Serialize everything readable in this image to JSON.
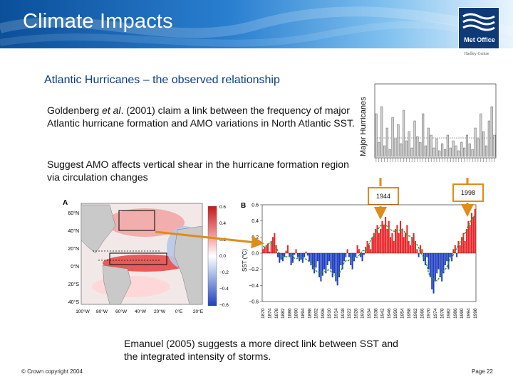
{
  "header": {
    "title": "Climate Impacts",
    "logo_text": "Met Office",
    "org_text": "Hadley Centre"
  },
  "slide": {
    "subtitle": "Atlantic Hurricanes – the observed relationship",
    "paragraph1_pre": "Goldenberg ",
    "paragraph1_italic": "et al",
    "paragraph1_post": ". (2001) claim a link between the frequency of major Atlantic hurricane formation and AMO variations in North Atlantic SST.",
    "paragraph2": "Suggest AMO affects vertical shear in the hurricane formation region via circulation changes",
    "caption": "Emanuel (2005) suggests a more direct link between SST and the integrated intensity of storms.",
    "copyright": "© Crown copyright 2004",
    "page": "Page 22"
  },
  "colors": {
    "header_blue": "#0b4f9a",
    "accent_orange": "#e08b1a",
    "warm": "#e8262a",
    "cool": "#1f3fbf",
    "lowpass": "#2f9a2f"
  },
  "hurricane_chart": {
    "ylabel": "Major Hurricanes",
    "marker_1": "1944",
    "marker_2": "1998"
  },
  "map": {
    "panel_label": "A",
    "lat_labels": [
      "60°N",
      "40°N",
      "20°N",
      "0°N",
      "20°S",
      "40°S"
    ],
    "lon_labels": [
      "100°W",
      "80°W",
      "60°W",
      "40°W",
      "20°W",
      "0°E",
      "20°E"
    ],
    "colorbar_ticks": [
      "0.6",
      "0.4",
      "0.2",
      "0.0",
      "−0.2",
      "−0.4",
      "−0.6"
    ]
  },
  "chart_data": {
    "type": "bar",
    "panel_label": "B",
    "ylabel": "SST (°C)",
    "ylim": [
      -0.6,
      0.6
    ],
    "y_ticks": [
      "0.6",
      "0.4",
      "0.2",
      "0.0",
      "−0.2",
      "−0.4",
      "−0.6"
    ],
    "x_ticks": [
      "1870",
      "1874",
      "1878",
      "1882",
      "1886",
      "1890",
      "1894",
      "1898",
      "1902",
      "1906",
      "1910",
      "1914",
      "1918",
      "1922",
      "1926",
      "1930",
      "1934",
      "1938",
      "1942",
      "1946",
      "1950",
      "1954",
      "1958",
      "1962",
      "1966",
      "1970",
      "1974",
      "1978",
      "1982",
      "1986",
      "1990",
      "1994",
      "1998"
    ],
    "years_start": 1870,
    "values": [
      0.05,
      0.08,
      0.1,
      0.12,
      0.02,
      0.15,
      0.2,
      0.25,
      0.1,
      -0.05,
      -0.12,
      -0.08,
      -0.1,
      -0.05,
      0.03,
      0.1,
      -0.05,
      -0.15,
      -0.12,
      -0.02,
      0.05,
      -0.05,
      -0.1,
      -0.08,
      -0.12,
      -0.05,
      0.02,
      -0.03,
      -0.1,
      -0.15,
      -0.2,
      -0.25,
      -0.18,
      -0.1,
      -0.3,
      -0.35,
      -0.28,
      -0.2,
      -0.25,
      -0.15,
      -0.1,
      -0.2,
      -0.3,
      -0.25,
      -0.35,
      -0.4,
      -0.3,
      -0.15,
      -0.2,
      -0.1,
      -0.05,
      0.05,
      -0.05,
      -0.15,
      -0.2,
      -0.1,
      -0.05,
      0.1,
      0.05,
      -0.05,
      -0.1,
      -0.02,
      0.08,
      0.15,
      0.1,
      0.05,
      0.2,
      0.25,
      0.3,
      0.35,
      0.25,
      0.3,
      0.4,
      0.35,
      0.45,
      0.3,
      0.4,
      0.2,
      0.25,
      0.15,
      0.3,
      0.35,
      0.25,
      0.4,
      0.3,
      0.2,
      0.25,
      0.35,
      0.15,
      0.1,
      0.2,
      0.25,
      0.15,
      0.05,
      -0.05,
      0.1,
      0.05,
      -0.1,
      -0.15,
      -0.05,
      -0.2,
      -0.3,
      -0.45,
      -0.5,
      -0.35,
      -0.25,
      -0.2,
      -0.3,
      -0.35,
      -0.25,
      -0.15,
      -0.1,
      -0.2,
      -0.05,
      -0.1,
      0.05,
      0.1,
      -0.05,
      0.15,
      0.1,
      0.2,
      0.25,
      0.15,
      0.3,
      0.4,
      0.35,
      0.5,
      0.45,
      0.55
    ]
  }
}
